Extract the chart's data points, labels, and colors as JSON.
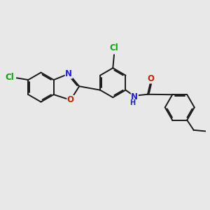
{
  "background_color": "#e8e8e8",
  "bond_color": "#1a1a1a",
  "N_color": "#2222cc",
  "O_color": "#cc2200",
  "Cl_color": "#00aa00",
  "font_size": 8.5,
  "lw": 1.4,
  "dbo": 0.055,
  "r6": 0.62,
  "xlim": [
    0.0,
    8.5
  ],
  "ylim": [
    2.0,
    8.5
  ]
}
